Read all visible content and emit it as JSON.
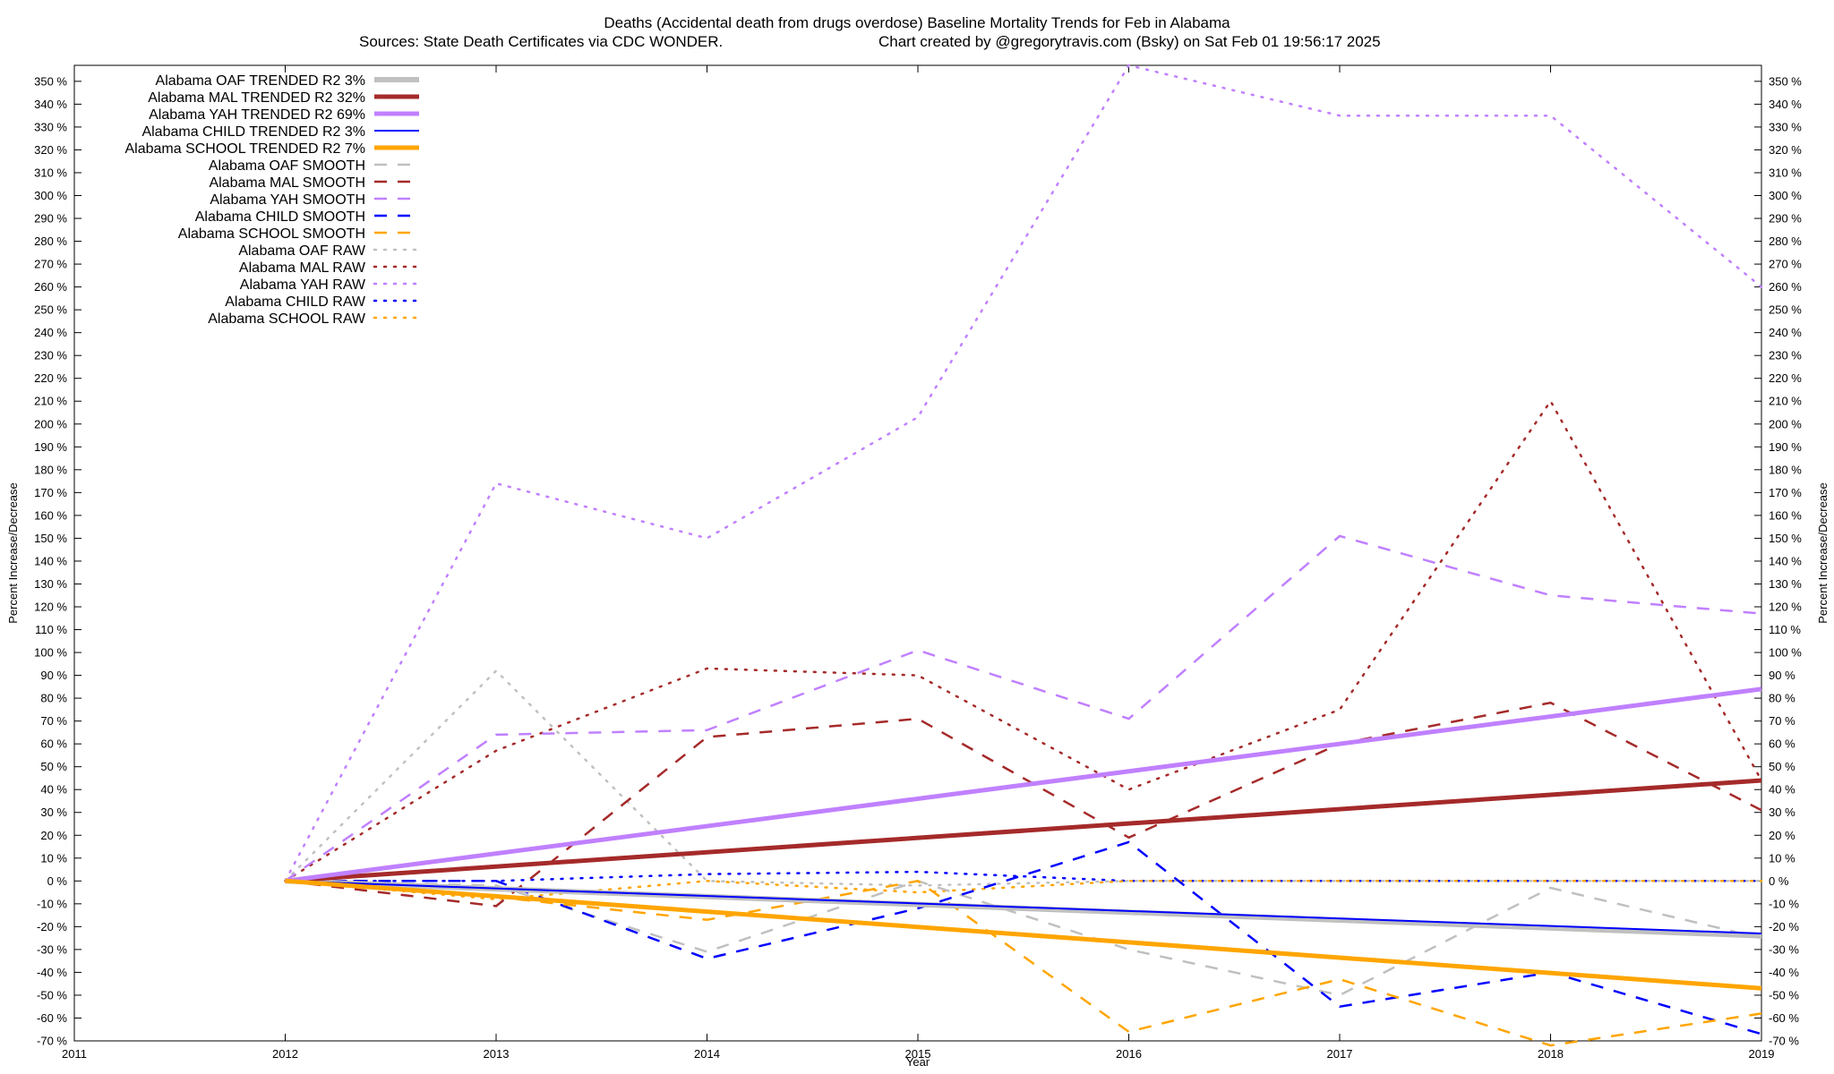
{
  "chart_data": {
    "type": "line",
    "title": "Deaths (Accidental death from drugs overdose)  Baseline Mortality Trends for Feb in Alabama",
    "subtitle_left": "Sources: State Death Certificates via CDC WONDER.",
    "subtitle_right": "Chart created by @gregorytravis.com (Bsky) on Sat Feb 01 19:56:17 2025",
    "xlabel": "Year",
    "ylabel": "Percent Increase/Decrease",
    "xlim": [
      2011,
      2019
    ],
    "ylim": [
      -70,
      357
    ],
    "x_ticks": [
      "2011",
      "2012",
      "2013",
      "2014",
      "2015",
      "2016",
      "2017",
      "2018",
      "2019"
    ],
    "y_tick_step": 10,
    "y_tick_min": -70,
    "y_tick_max": 350,
    "y_tick_suffix": " %",
    "legend_position": "top-left",
    "series": [
      {
        "name": "Alabama OAF TRENDED R2  3%",
        "kind": "trend",
        "color": "#c0c0c0",
        "x": [
          2012,
          2019
        ],
        "y": [
          0,
          -24
        ]
      },
      {
        "name": "Alabama MAL TRENDED R2  32%",
        "kind": "trend",
        "color": "#a52a2a",
        "x": [
          2012,
          2019
        ],
        "y": [
          0,
          44
        ]
      },
      {
        "name": "Alabama YAH TRENDED R2  69%",
        "kind": "trend",
        "color": "#c080ff",
        "x": [
          2012,
          2019
        ],
        "y": [
          0,
          84
        ]
      },
      {
        "name": "Alabama CHILD TRENDED R2  3%",
        "kind": "trend",
        "color": "#0000ff",
        "x": [
          2012,
          2019
        ],
        "y": [
          0,
          -23
        ]
      },
      {
        "name": "Alabama SCHOOL TRENDED R2  7%",
        "kind": "trend",
        "color": "#ffa500",
        "x": [
          2012,
          2019
        ],
        "y": [
          0,
          -47
        ]
      },
      {
        "name": "Alabama OAF SMOOTH",
        "kind": "smooth",
        "color": "#c0c0c0",
        "x": [
          2012,
          2013,
          2014,
          2015,
          2016,
          2017,
          2018,
          2019
        ],
        "y": [
          0,
          -2,
          -31,
          0,
          -30,
          -50,
          -3,
          -25
        ]
      },
      {
        "name": "Alabama MAL SMOOTH",
        "kind": "smooth",
        "color": "#a52a2a",
        "x": [
          2012,
          2013,
          2014,
          2015,
          2016,
          2017,
          2018,
          2019
        ],
        "y": [
          0,
          -11,
          63,
          71,
          19,
          60,
          78,
          31
        ]
      },
      {
        "name": "Alabama YAH SMOOTH",
        "kind": "smooth",
        "color": "#c080ff",
        "x": [
          2012,
          2013,
          2014,
          2015,
          2016,
          2017,
          2018,
          2019
        ],
        "y": [
          0,
          64,
          66,
          101,
          71,
          151,
          125,
          117
        ]
      },
      {
        "name": "Alabama CHILD SMOOTH",
        "kind": "smooth",
        "color": "#0000ff",
        "x": [
          2012,
          2013,
          2014,
          2015,
          2016,
          2017,
          2018,
          2019
        ],
        "y": [
          0,
          0,
          -34,
          -12,
          17,
          -55,
          -40,
          -67
        ]
      },
      {
        "name": "Alabama SCHOOL SMOOTH",
        "kind": "smooth",
        "color": "#ffa500",
        "x": [
          2012,
          2013,
          2014,
          2015,
          2016,
          2017,
          2018,
          2019
        ],
        "y": [
          0,
          -7,
          -17,
          0,
          -66,
          -43,
          -72,
          -58
        ]
      },
      {
        "name": "Alabama OAF RAW",
        "kind": "raw",
        "color": "#c0c0c0",
        "x": [
          2012,
          2013,
          2014,
          2015,
          2016,
          2017,
          2018,
          2019
        ],
        "y": [
          0,
          92,
          0,
          -2,
          0,
          0,
          0,
          0
        ]
      },
      {
        "name": "Alabama MAL RAW",
        "kind": "raw",
        "color": "#a52a2a",
        "x": [
          2012,
          2013,
          2014,
          2015,
          2016,
          2017,
          2018,
          2019
        ],
        "y": [
          0,
          57,
          93,
          90,
          40,
          75,
          210,
          44
        ]
      },
      {
        "name": "Alabama YAH RAW",
        "kind": "raw",
        "color": "#c080ff",
        "x": [
          2012,
          2013,
          2014,
          2015,
          2016,
          2017,
          2018,
          2019
        ],
        "y": [
          0,
          174,
          150,
          203,
          357,
          335,
          335,
          260
        ]
      },
      {
        "name": "Alabama CHILD RAW",
        "kind": "raw",
        "color": "#0000ff",
        "x": [
          2012,
          2013,
          2014,
          2015,
          2016,
          2017,
          2018,
          2019
        ],
        "y": [
          0,
          0,
          3,
          4,
          0,
          0,
          0,
          0
        ]
      },
      {
        "name": "Alabama SCHOOL RAW",
        "kind": "raw",
        "color": "#ffa500",
        "x": [
          2012,
          2013,
          2014,
          2015,
          2016,
          2017,
          2018,
          2019
        ],
        "y": [
          0,
          -8,
          0,
          -5,
          0,
          0,
          0,
          0
        ]
      }
    ]
  }
}
